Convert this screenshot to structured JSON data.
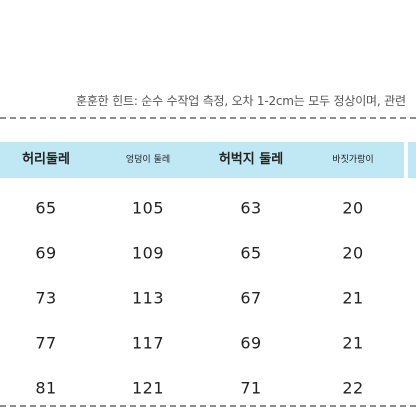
{
  "note": "훈훈한 힌트: 순수 수작업 측정, 오차 1-2cm는 모두 정상이며, 관련",
  "table": {
    "headers": [
      "허리둘레",
      "엉덩이 둘레",
      "허벅지 둘레",
      "바짓가랑이"
    ],
    "rows": [
      [
        "65",
        "105",
        "63",
        "20"
      ],
      [
        "69",
        "109",
        "65",
        "20"
      ],
      [
        "73",
        "113",
        "67",
        "21"
      ],
      [
        "77",
        "117",
        "69",
        "21"
      ],
      [
        "81",
        "121",
        "71",
        "22"
      ]
    ]
  },
  "colors": {
    "header_background": "#bfe7f4",
    "divider": "#8d8d8d"
  }
}
